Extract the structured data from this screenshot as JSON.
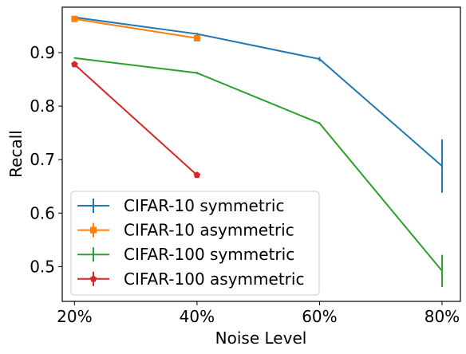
{
  "chart_data": {
    "type": "line",
    "title": "",
    "xlabel": "Noise Level",
    "ylabel": "Recall",
    "categories": [
      "20%",
      "40%",
      "60%",
      "80%"
    ],
    "x": [
      20,
      40,
      60,
      80
    ],
    "xlim": [
      18,
      83
    ],
    "ylim": [
      0.435,
      0.985
    ],
    "yticks": [
      0.5,
      0.6,
      0.7,
      0.8,
      0.9
    ],
    "grid": false,
    "legend_position": "lower-left",
    "series": [
      {
        "name": "CIFAR-10 symmetric",
        "color": "#1f77b4",
        "marker": "none",
        "x": [
          20,
          40,
          60,
          80
        ],
        "values": [
          0.966,
          0.935,
          0.888,
          0.688
        ],
        "errors": [
          0.002,
          0.002,
          0.004,
          0.05
        ]
      },
      {
        "name": "CIFAR-10 asymmetric",
        "color": "#ff7f0e",
        "marker": "square",
        "x": [
          20,
          40
        ],
        "values": [
          0.963,
          0.927
        ],
        "errors": [
          0.002,
          0.002
        ]
      },
      {
        "name": "CIFAR-100 symmetric",
        "color": "#2ca02c",
        "marker": "none",
        "x": [
          20,
          40,
          60,
          80
        ],
        "values": [
          0.89,
          0.862,
          0.768,
          0.492
        ],
        "errors": [
          0.001,
          0.002,
          0.002,
          0.03
        ]
      },
      {
        "name": "CIFAR-100 asymmetric",
        "color": "#d62728",
        "marker": "pentagon",
        "x": [
          20,
          40
        ],
        "values": [
          0.878,
          0.671
        ],
        "errors": [
          0.002,
          0.002
        ]
      }
    ]
  }
}
